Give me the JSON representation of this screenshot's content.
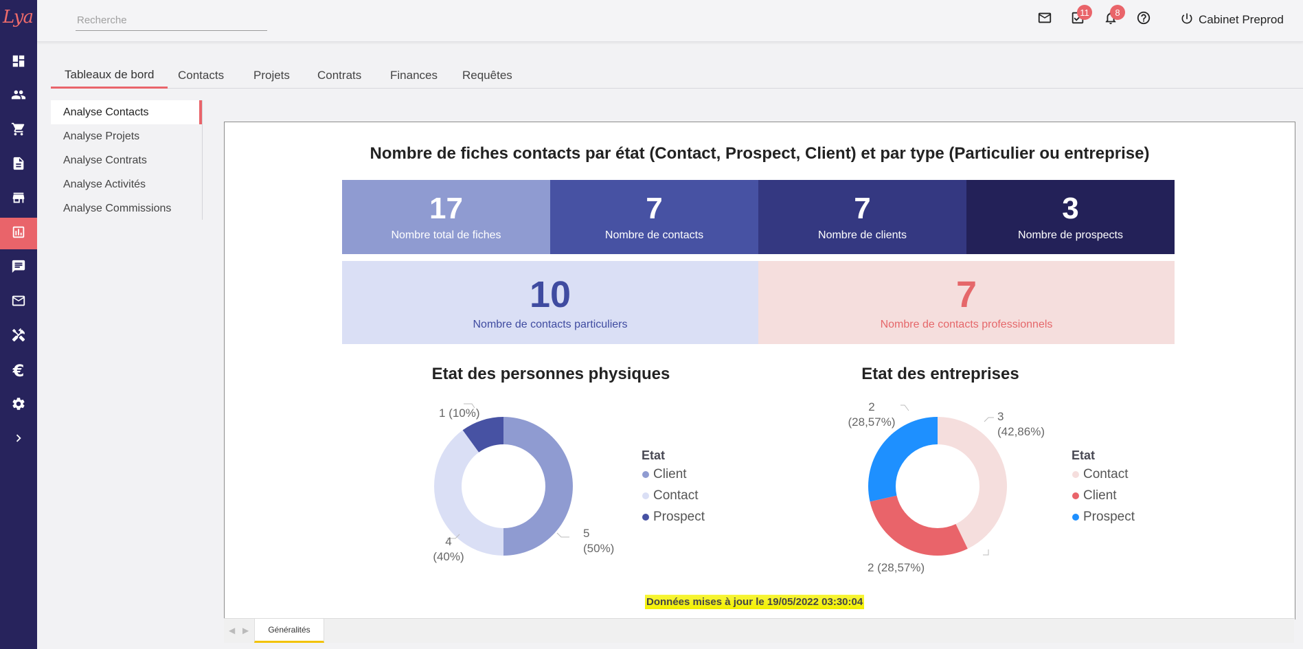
{
  "app": {
    "logo_text": "Lya"
  },
  "sidebar": {
    "items": [
      {
        "icon": "dashboard-icon"
      },
      {
        "icon": "users-icon"
      },
      {
        "icon": "cart-icon"
      },
      {
        "icon": "document-icon"
      },
      {
        "icon": "store-icon"
      },
      {
        "icon": "chart-icon",
        "active": true
      },
      {
        "icon": "chat-icon"
      },
      {
        "icon": "mail-icon"
      },
      {
        "icon": "tools-icon"
      },
      {
        "icon": "euro-icon"
      },
      {
        "icon": "gear-icon"
      },
      {
        "icon": "chevron-right-icon"
      }
    ]
  },
  "header": {
    "search_placeholder": "Recherche",
    "tasks_badge": "11",
    "notifications_badge": "8",
    "user_label": "Cabinet Preprod"
  },
  "tabs": [
    {
      "label": "Tableaux de bord",
      "active": true
    },
    {
      "label": "Contacts"
    },
    {
      "label": "Projets"
    },
    {
      "label": "Contrats"
    },
    {
      "label": "Finances"
    },
    {
      "label": "Requêtes"
    }
  ],
  "subnav": [
    {
      "label": "Analyse Contacts",
      "active": true
    },
    {
      "label": "Analyse Projets"
    },
    {
      "label": "Analyse Contrats"
    },
    {
      "label": "Analyse Activités"
    },
    {
      "label": "Analyse Commissions"
    }
  ],
  "report": {
    "title": "Nombre de fiches contacts par état (Contact, Prospect, Client) et par type (Particulier ou entreprise)",
    "kpis": [
      {
        "value": "17",
        "label": "Nombre total de fiches",
        "color": "#8f9bd1"
      },
      {
        "value": "7",
        "label": "Nombre de contacts",
        "color": "#4752a3"
      },
      {
        "value": "7",
        "label": "Nombre de clients",
        "color": "#343881"
      },
      {
        "value": "3",
        "label": "Nombre de prospects",
        "color": "#232158"
      }
    ],
    "kpis2": [
      {
        "value": "10",
        "label": "Nombre de contacts particuliers",
        "bg": "#dadff5",
        "fg": "#3f4ba0"
      },
      {
        "value": "7",
        "label": "Nombre de contacts professionnels",
        "bg": "#f5dedd",
        "fg": "#e5676a"
      }
    ],
    "updated_text": "Données mises à jour le 19/05/2022 03:30:04",
    "page_tab": "Généralités"
  },
  "chart_data": [
    {
      "type": "pie",
      "title": "Etat des personnes physiques",
      "legend_title": "Etat",
      "legend_placement": "right",
      "slices": [
        {
          "name": "Client",
          "value": 5,
          "label": "5 (50%)",
          "color": "#8f9bd1"
        },
        {
          "name": "Contact",
          "value": 4,
          "label": "4 (40%)",
          "color": "#dadff5"
        },
        {
          "name": "Prospect",
          "value": 1,
          "label": "1 (10%)",
          "color": "#4752a3"
        }
      ]
    },
    {
      "type": "pie",
      "title": "Etat des entreprises",
      "legend_title": "Etat",
      "legend_placement": "right",
      "slices": [
        {
          "name": "Contact",
          "value": 3,
          "label": "3 (42,86%)",
          "color": "#f5dedd"
        },
        {
          "name": "Client",
          "value": 2,
          "label": "2 (28,57%)",
          "color": "#e9646a"
        },
        {
          "name": "Prospect",
          "value": 2,
          "label": "2 (28,57%)",
          "color": "#1e90ff"
        }
      ]
    }
  ]
}
